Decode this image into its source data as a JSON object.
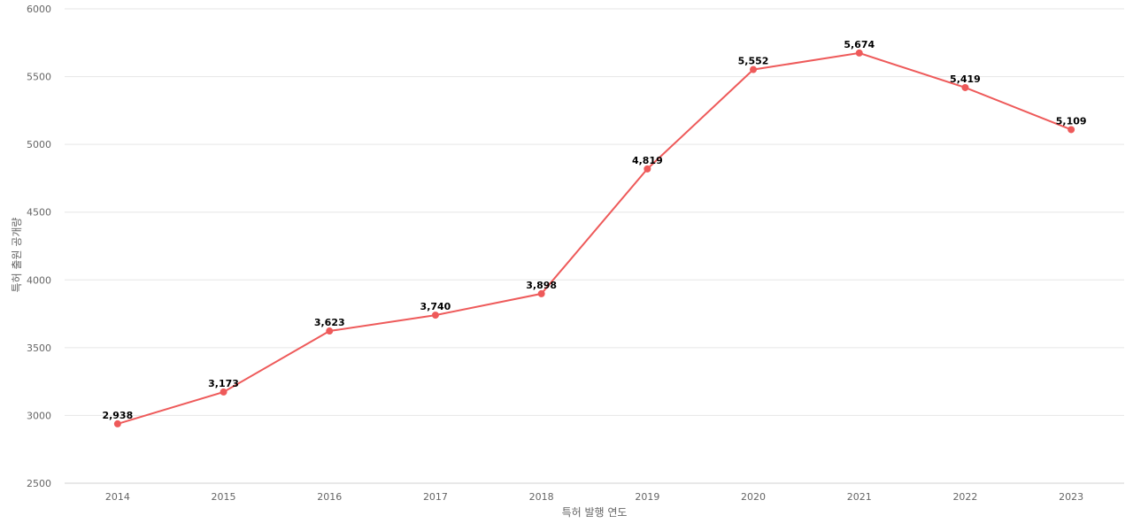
{
  "chart_data": {
    "type": "line",
    "title": "",
    "xlabel": "특허 발행 연도",
    "ylabel": "특허 출원 공개량",
    "categories": [
      "2014",
      "2015",
      "2016",
      "2017",
      "2018",
      "2019",
      "2020",
      "2021",
      "2022",
      "2023"
    ],
    "series": [
      {
        "values": [
          2938,
          3173,
          3623,
          3740,
          3898,
          4819,
          5552,
          5674,
          5419,
          5109
        ],
        "value_labels": [
          "2,938",
          "3,173",
          "3,623",
          "3,740",
          "3,898",
          "4,819",
          "5,552",
          "5,674",
          "5,419",
          "5,109"
        ],
        "color": "#ee5a5a"
      }
    ],
    "ylim": [
      2500,
      6000
    ],
    "yticks": [
      2500,
      3000,
      3500,
      4000,
      4500,
      5000,
      5500,
      6000
    ],
    "grid": true,
    "legend": "none"
  }
}
